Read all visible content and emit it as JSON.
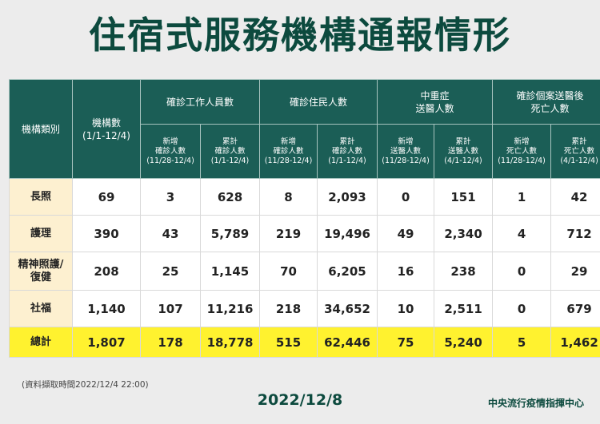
{
  "title": "住宿式服務機構通報情形",
  "header": {
    "category": "機構類別",
    "count_label": "機構數",
    "count_range": "(1/1-12/4)",
    "groups": {
      "staff": "確診工作人員數",
      "residents": "確診住民人數",
      "severe": "中重症\n送醫人數",
      "deaths": "確診個案送醫後\n死亡人數"
    },
    "sub": {
      "staff_new": "新增\n確診人數\n(11/28-12/4)",
      "staff_cum": "累計\n確診人數\n(1/1-12/4)",
      "res_new": "新增\n確診人數\n(11/28-12/4)",
      "res_cum": "累計\n確診人數\n(1/1-12/4)",
      "sev_new": "新增\n送醫人數\n(11/28-12/4)",
      "sev_cum": "累計\n送醫人數\n(4/1-12/4)",
      "death_new": "新增\n死亡人數\n(11/28-12/4)",
      "death_cum": "累計\n死亡人數\n(4/1-12/4)"
    }
  },
  "rows": [
    {
      "category": "長照",
      "values": [
        "69",
        "3",
        "628",
        "8",
        "2,093",
        "0",
        "151",
        "1",
        "42"
      ]
    },
    {
      "category": "護理",
      "values": [
        "390",
        "43",
        "5,789",
        "219",
        "19,496",
        "49",
        "2,340",
        "4",
        "712"
      ]
    },
    {
      "category": "精神照護/\n復健",
      "values": [
        "208",
        "25",
        "1,145",
        "70",
        "6,205",
        "16",
        "238",
        "0",
        "29"
      ]
    },
    {
      "category": "社福",
      "values": [
        "1,140",
        "107",
        "11,216",
        "218",
        "34,652",
        "10",
        "2,511",
        "0",
        "679"
      ]
    },
    {
      "category": "總計",
      "values": [
        "1,807",
        "178",
        "18,778",
        "515",
        "62,446",
        "75",
        "5,240",
        "5",
        "1,462"
      ]
    }
  ],
  "colors": {
    "header_bg": "#1b5e56",
    "category_bg": "#fdf0d0",
    "total_bg": "#fff22f",
    "title": "#0c4a3e"
  },
  "footer": {
    "note": "(資料擷取時間2022/12/4 22:00)",
    "date": "2022/12/8",
    "org": "中央流行疫情指揮中心"
  }
}
